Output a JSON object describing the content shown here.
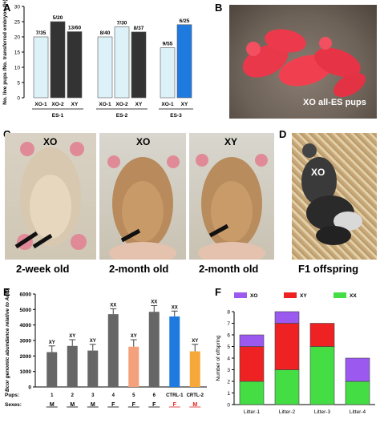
{
  "panels": {
    "A": {
      "letter": "A"
    },
    "B": {
      "letter": "B",
      "label": "XO all-ES pups"
    },
    "C": {
      "letter": "C",
      "photos": [
        {
          "tag": "XO",
          "caption": "2-week old"
        },
        {
          "tag": "XO",
          "caption": "2-month old"
        },
        {
          "tag": "XY",
          "caption": "2-month old"
        }
      ]
    },
    "D": {
      "letter": "D",
      "tag": "XO",
      "caption": "F1 offspring"
    },
    "E": {
      "letter": "E"
    },
    "F": {
      "letter": "F"
    }
  },
  "colors": {
    "pink": "#ee3344",
    "light_blue": "#ddf2f8",
    "dark": "#333333",
    "blue": "#1f7ae0",
    "salmon": "#f4a07c",
    "orange": "#f6a83a",
    "red_label": "#e02020",
    "purple": "#9b59f0",
    "green": "#44dd44"
  },
  "chart_data": [
    {
      "type": "bar",
      "panel": "A",
      "ylabel": "No. live pups /No. transferred embryos (%)",
      "ylim": [
        0,
        30
      ],
      "yticks": [
        0,
        5,
        10,
        15,
        20,
        25,
        30
      ],
      "groups": [
        {
          "name": "ES-1",
          "bars": [
            {
              "category": "XO-1",
              "value": 20,
              "label": "7/35",
              "color": "#ddf2f8"
            },
            {
              "category": "XO-2",
              "value": 25,
              "label": "5/20",
              "color": "#333333"
            },
            {
              "category": "XY",
              "value": 21.7,
              "label": "13/60",
              "color": "#333333"
            }
          ]
        },
        {
          "name": "ES-2",
          "bars": [
            {
              "category": "XO-1",
              "value": 20,
              "label": "8/40",
              "color": "#ddf2f8"
            },
            {
              "category": "XO-2",
              "value": 23.3,
              "label": "7/30",
              "color": "#ddf2f8"
            },
            {
              "category": "XY",
              "value": 21.6,
              "label": "8/37",
              "color": "#333333"
            }
          ]
        },
        {
          "name": "ES-3",
          "bars": [
            {
              "category": "XO-1",
              "value": 16.4,
              "label": "9/55",
              "color": "#ddf2f8"
            },
            {
              "category": "XY",
              "value": 24,
              "label": "6/25",
              "color": "#1f7ae0"
            }
          ]
        }
      ]
    },
    {
      "type": "bar",
      "panel": "E",
      "ylabel": "Bcor genomic abundance relative to Actb",
      "ylim": [
        0,
        6000
      ],
      "yticks": [
        0,
        1000,
        2000,
        3000,
        4000,
        5000,
        6000
      ],
      "row_labels": [
        "Pups:",
        "Sexes:"
      ],
      "bars": [
        {
          "pup": "1",
          "sex": "M",
          "value": 2250,
          "err": 400,
          "genotype": "XY",
          "color": "#666666",
          "sex_color": "#000000"
        },
        {
          "pup": "2",
          "sex": "M",
          "value": 2650,
          "err": 400,
          "genotype": "XY",
          "color": "#666666",
          "sex_color": "#000000"
        },
        {
          "pup": "3",
          "sex": "M",
          "value": 2350,
          "err": 400,
          "genotype": "XY",
          "color": "#666666",
          "sex_color": "#000000"
        },
        {
          "pup": "4",
          "sex": "F",
          "value": 4700,
          "err": 350,
          "genotype": "XX",
          "color": "#666666",
          "sex_color": "#000000"
        },
        {
          "pup": "5",
          "sex": "F",
          "value": 2600,
          "err": 450,
          "genotype": "XY",
          "color": "#f4a07c",
          "sex_color": "#000000"
        },
        {
          "pup": "6",
          "sex": "F",
          "value": 4850,
          "err": 400,
          "genotype": "XX",
          "color": "#666666",
          "sex_color": "#000000"
        },
        {
          "pup": "CTRL-1",
          "sex": "F",
          "value": 4550,
          "err": 350,
          "genotype": "XX",
          "color": "#1f7ae0",
          "sex_color": "#e02020"
        },
        {
          "pup": "CRTL-2",
          "sex": "M",
          "value": 2300,
          "err": 450,
          "genotype": "XY",
          "color": "#f6a83a",
          "sex_color": "#e02020"
        }
      ]
    },
    {
      "type": "bar",
      "panel": "F",
      "stacked": true,
      "ylabel": "Number of offspring",
      "ylim": [
        0,
        8
      ],
      "yticks": [
        0,
        1,
        2,
        3,
        4,
        5,
        6,
        7,
        8
      ],
      "categories": [
        "Litter-1",
        "Litter-2",
        "Litter-3",
        "Litter-4"
      ],
      "legend_position": "top",
      "series": [
        {
          "name": "XX",
          "color": "#44dd44",
          "values": [
            2,
            3,
            5,
            2
          ]
        },
        {
          "name": "XY",
          "color": "#ee2222",
          "values": [
            3,
            4,
            2,
            0
          ]
        },
        {
          "name": "XO",
          "color": "#9b59f0",
          "values": [
            1,
            1,
            0,
            2
          ]
        }
      ],
      "legend_order": [
        "XO",
        "XY",
        "XX"
      ]
    }
  ]
}
